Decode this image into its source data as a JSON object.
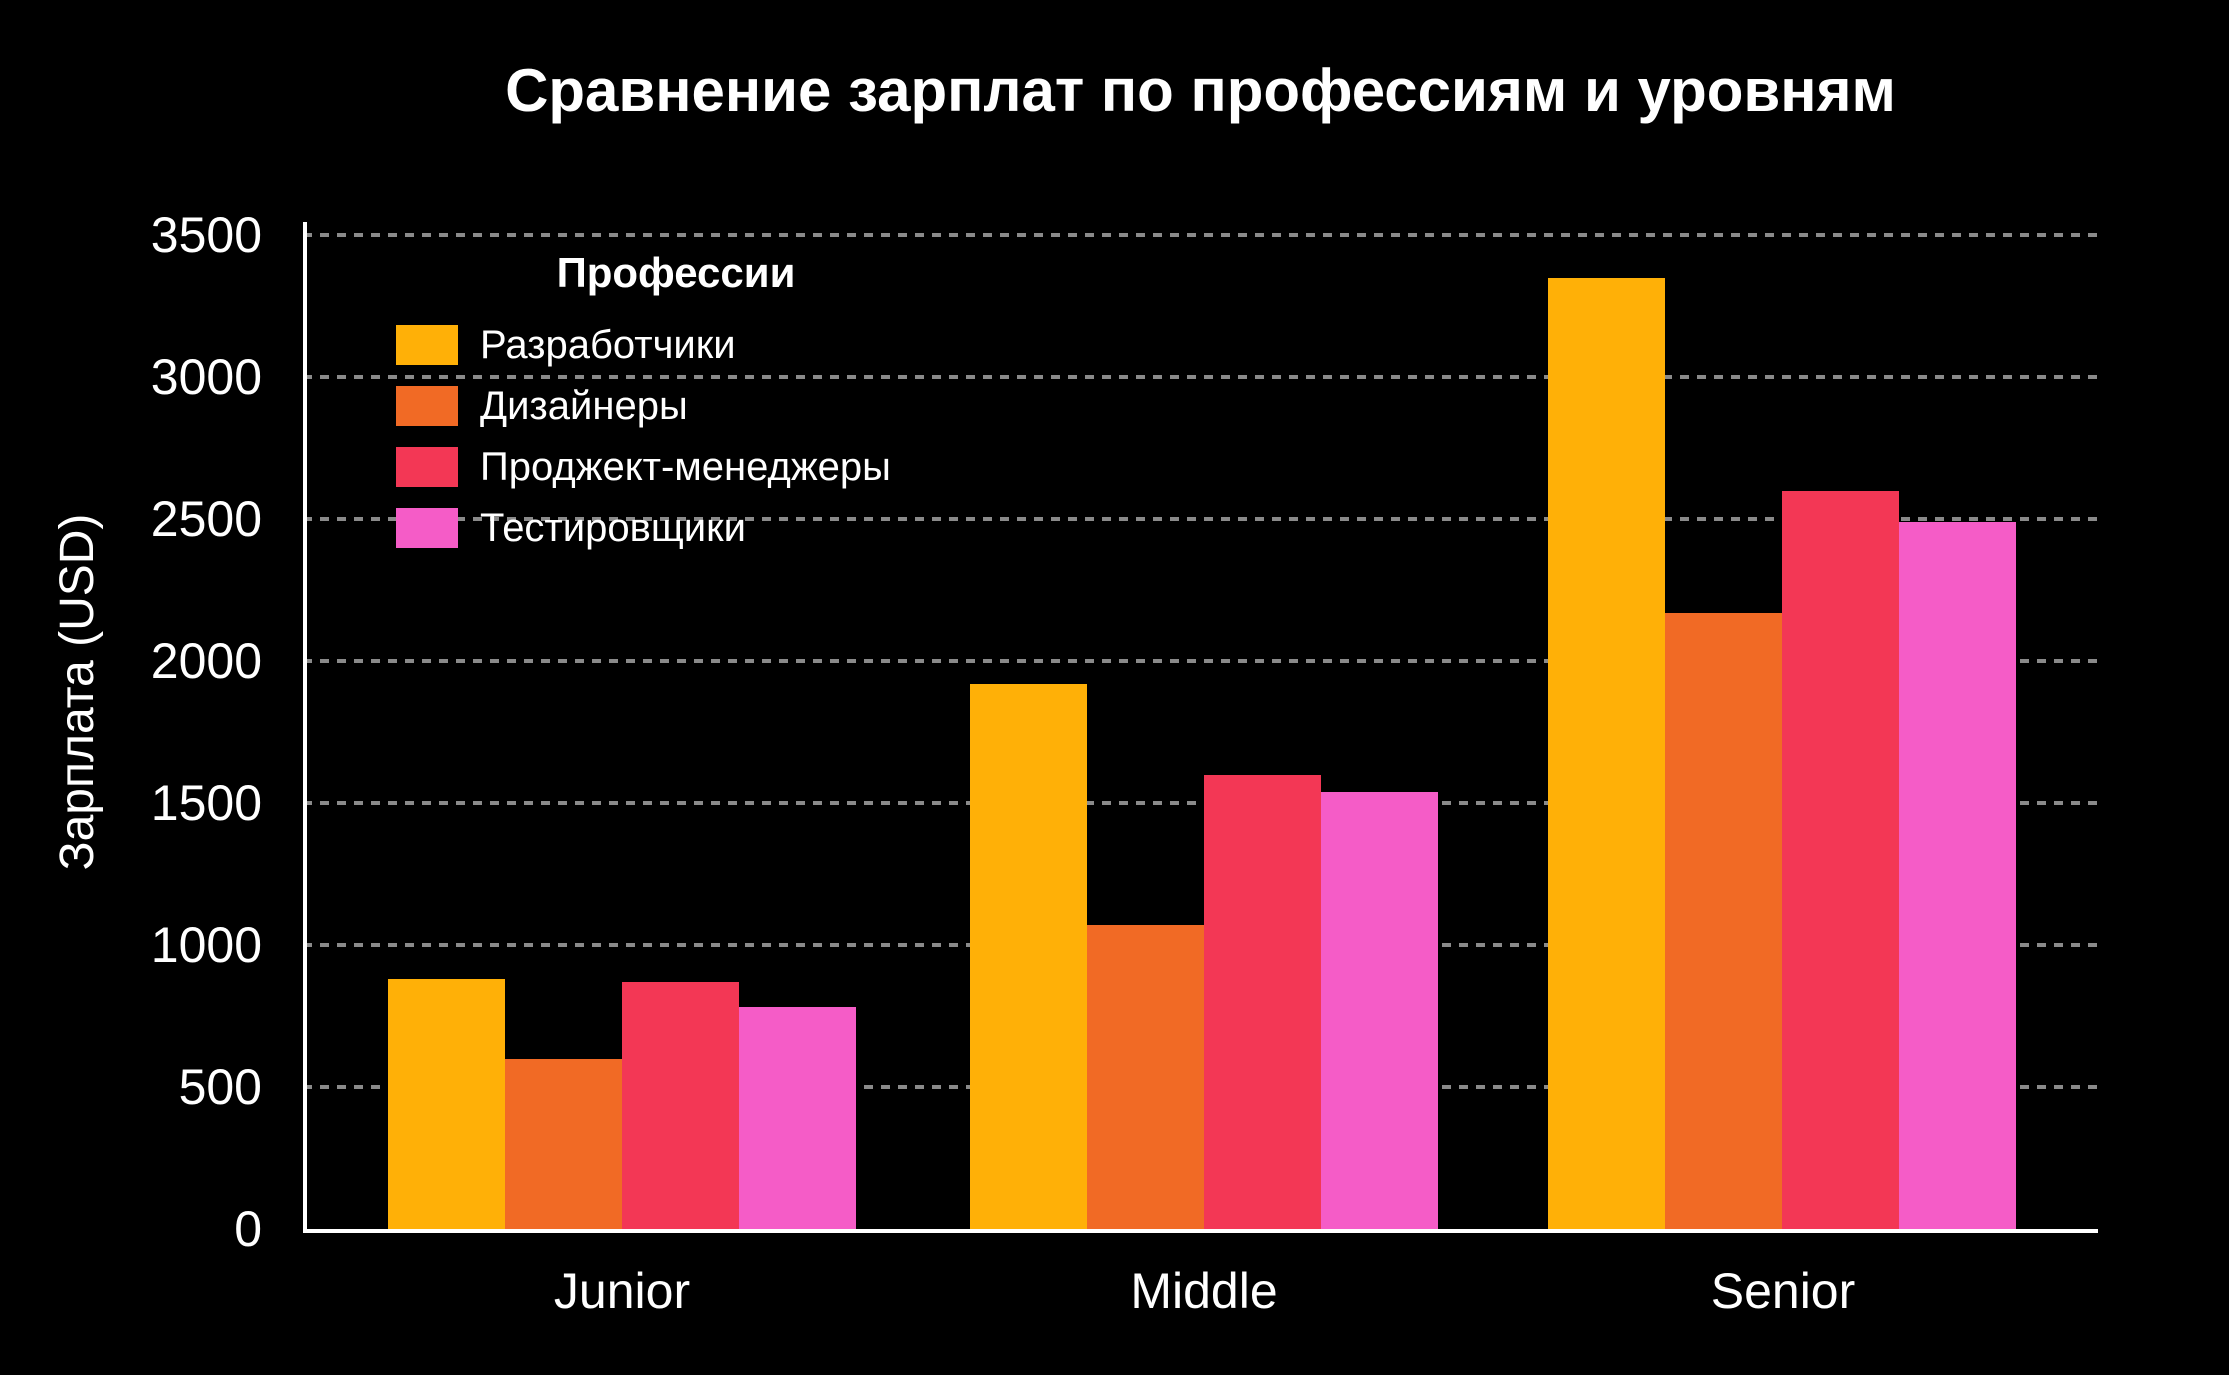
{
  "chart_data": {
    "type": "bar",
    "title": "Сравнение зарплат по профессиям и уровням",
    "categories": [
      "Junior",
      "Middle",
      "Senior"
    ],
    "series": [
      {
        "name": "Разработчики",
        "color": "#FFB007",
        "values": [
          880,
          1920,
          3350
        ]
      },
      {
        "name": "Дизайнеры",
        "color": "#F16A25",
        "values": [
          600,
          1070,
          2170
        ]
      },
      {
        "name": "Проджект-менеджеры",
        "color": "#F33755",
        "values": [
          870,
          1600,
          2600
        ]
      },
      {
        "name": "Тестировщики",
        "color": "#F55CC7",
        "values": [
          780,
          1540,
          2490
        ]
      }
    ],
    "xlabel": "",
    "ylabel": "Зарплата (USD)",
    "ylim": [
      0,
      3500
    ],
    "yticks": [
      0,
      500,
      1000,
      1500,
      2000,
      2500,
      3000,
      3500
    ],
    "grid": "horizontal dashed",
    "legend_title": "Профессии",
    "legend_position": "inside-top-left"
  },
  "colors": {
    "background": "#000000",
    "text": "#FFFFFF",
    "gridline": "#8A8A8A",
    "axis_line": "#FFFFFF"
  }
}
